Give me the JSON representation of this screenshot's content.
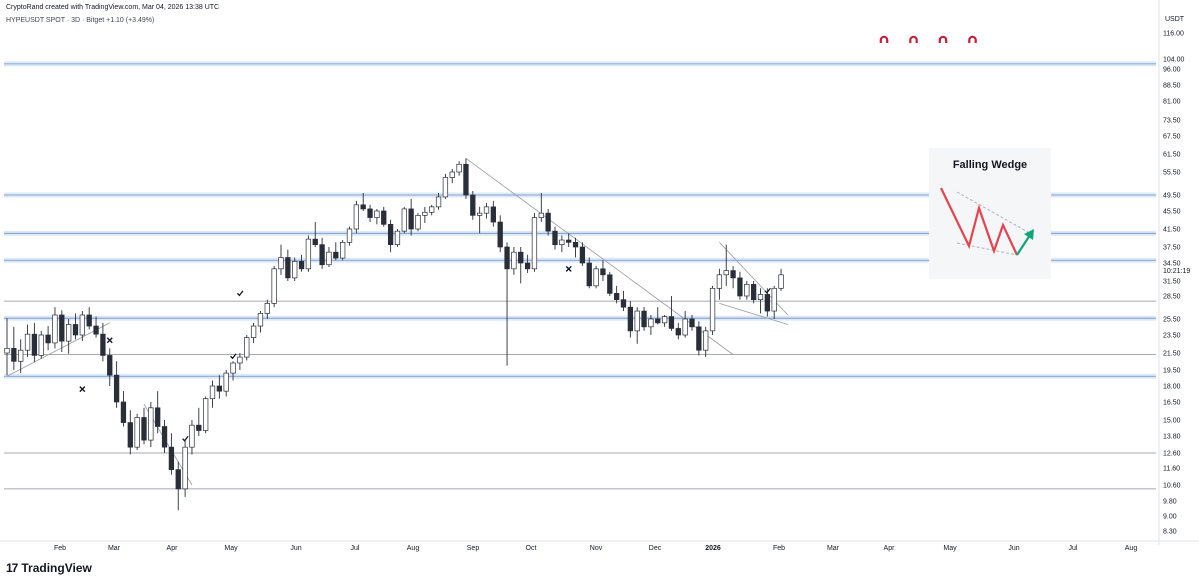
{
  "header": {
    "credit": "CryptoRand created with TradingView.com, Mar 04, 2026 13:38 UTC",
    "symbol_line": "HYPEUSDT SPOT · 3D · Bitget  +1.10 (+3.49%)"
  },
  "branding": {
    "logo_mark": "17",
    "logo_name": "TradingView"
  },
  "annotation_card": {
    "title": "Falling Wedge"
  },
  "colors": {
    "up": "#ffffff",
    "down": "#2a2e39",
    "wick": "#2a2e39",
    "level_blue": "#a9c7ee",
    "level_gray": "#8a8d96",
    "wedge_red": "#e8424f",
    "wedge_green": "#0fa67a",
    "marker_red": "#c71f38"
  },
  "chart_data": {
    "type": "candlestick",
    "currency": "USDT",
    "price_tag": "10:21:19",
    "y_log_scale": true,
    "y_ticks": [
      "116.00",
      "104.00",
      "96.00",
      "88.50",
      "81.00",
      "73.50",
      "67.50",
      "61.50",
      "55.50",
      "49.50",
      "45.50",
      "41.50",
      "37.50",
      "34.50",
      "31.50",
      "28.50",
      "25.50",
      "23.50",
      "21.50",
      "19.50",
      "18.00",
      "16.50",
      "15.00",
      "13.80",
      "12.60",
      "11.60",
      "10.60",
      "9.80",
      "9.00",
      "8.30"
    ],
    "x_ticks": [
      "Feb",
      "Mar",
      "Apr",
      "May",
      "Jun",
      "Jul",
      "Aug",
      "Sep",
      "Oct",
      "Nov",
      "Dec",
      "2026",
      "Feb",
      "Mar",
      "Apr",
      "May",
      "Jun",
      "Jul",
      "Aug"
    ],
    "horizontal_levels": [
      {
        "price": 100.0,
        "style": "blue"
      },
      {
        "price": 49.5,
        "style": "blue"
      },
      {
        "price": 40.5,
        "style": "blue"
      },
      {
        "price": 35.0,
        "style": "blue"
      },
      {
        "price": 27.8,
        "style": "gray"
      },
      {
        "price": 25.6,
        "style": "blue"
      },
      {
        "price": 21.3,
        "style": "gray"
      },
      {
        "price": 18.9,
        "style": "blue"
      },
      {
        "price": 12.6,
        "style": "gray"
      },
      {
        "price": 10.4,
        "style": "gray"
      }
    ],
    "candles": [
      [
        21.5,
        25.6,
        19.0,
        22.0
      ],
      [
        22.0,
        24.5,
        19.5,
        20.5
      ],
      [
        20.5,
        23.0,
        19.2,
        21.8
      ],
      [
        21.8,
        24.8,
        21.0,
        23.6
      ],
      [
        23.6,
        25.0,
        20.4,
        21.2
      ],
      [
        21.2,
        24.0,
        20.8,
        23.5
      ],
      [
        23.5,
        24.6,
        21.8,
        22.6
      ],
      [
        22.6,
        27.0,
        22.0,
        26.0
      ],
      [
        26.0,
        26.6,
        21.6,
        22.8
      ],
      [
        22.8,
        25.5,
        21.4,
        24.8
      ],
      [
        24.8,
        26.2,
        23.0,
        23.5
      ],
      [
        23.5,
        26.5,
        22.8,
        26.0
      ],
      [
        26.0,
        27.0,
        24.2,
        24.6
      ],
      [
        24.6,
        25.8,
        23.2,
        23.6
      ],
      [
        23.6,
        25.0,
        20.5,
        21.2
      ],
      [
        21.2,
        22.0,
        18.0,
        19.0
      ],
      [
        19.0,
        20.5,
        16.0,
        16.5
      ],
      [
        16.5,
        17.5,
        14.5,
        14.8
      ],
      [
        14.8,
        15.8,
        12.5,
        13.0
      ],
      [
        13.0,
        15.5,
        12.8,
        15.2
      ],
      [
        15.2,
        16.0,
        13.2,
        13.5
      ],
      [
        13.5,
        16.5,
        13.0,
        16.0
      ],
      [
        16.0,
        17.5,
        14.0,
        14.5
      ],
      [
        14.5,
        15.0,
        12.6,
        13.0
      ],
      [
        13.0,
        14.0,
        11.2,
        11.5
      ],
      [
        11.5,
        12.0,
        9.3,
        10.4
      ],
      [
        10.4,
        13.5,
        10.0,
        13.0
      ],
      [
        13.0,
        15.0,
        12.5,
        14.6
      ],
      [
        14.6,
        16.0,
        13.8,
        14.2
      ],
      [
        14.2,
        17.0,
        14.0,
        16.8
      ],
      [
        16.8,
        18.5,
        16.0,
        18.0
      ],
      [
        18.0,
        19.0,
        16.8,
        17.5
      ],
      [
        17.5,
        19.5,
        17.0,
        19.2
      ],
      [
        19.2,
        20.5,
        18.5,
        20.3
      ],
      [
        20.3,
        21.5,
        19.5,
        21.0
      ],
      [
        21.0,
        23.5,
        20.6,
        23.2
      ],
      [
        23.2,
        25.0,
        22.6,
        24.6
      ],
      [
        24.6,
        26.5,
        23.8,
        26.2
      ],
      [
        26.2,
        28.0,
        25.5,
        27.5
      ],
      [
        27.5,
        34.0,
        27.0,
        33.5
      ],
      [
        33.5,
        38.0,
        32.5,
        35.5
      ],
      [
        35.5,
        37.0,
        31.5,
        32.0
      ],
      [
        32.0,
        35.5,
        31.5,
        34.8
      ],
      [
        34.8,
        36.0,
        33.0,
        33.5
      ],
      [
        33.5,
        40.0,
        33.0,
        39.2
      ],
      [
        39.2,
        43.0,
        37.5,
        38.0
      ],
      [
        38.0,
        39.5,
        33.5,
        34.2
      ],
      [
        34.2,
        37.5,
        33.8,
        36.5
      ],
      [
        36.5,
        38.5,
        35.0,
        35.4
      ],
      [
        35.4,
        39.0,
        35.0,
        38.5
      ],
      [
        38.5,
        42.0,
        37.8,
        41.5
      ],
      [
        41.5,
        48.0,
        40.5,
        47.0
      ],
      [
        47.0,
        50.0,
        45.5,
        46.0
      ],
      [
        46.0,
        47.0,
        43.0,
        44.0
      ],
      [
        44.0,
        46.0,
        42.5,
        45.5
      ],
      [
        45.5,
        46.5,
        42.0,
        42.5
      ],
      [
        42.5,
        43.5,
        36.5,
        38.0
      ],
      [
        38.0,
        41.5,
        37.5,
        41.0
      ],
      [
        41.0,
        46.5,
        40.5,
        46.0
      ],
      [
        46.0,
        48.5,
        40.0,
        41.5
      ],
      [
        41.5,
        45.0,
        41.0,
        44.5
      ],
      [
        44.5,
        46.5,
        42.8,
        45.2
      ],
      [
        45.2,
        47.0,
        44.5,
        46.5
      ],
      [
        46.5,
        50.0,
        45.8,
        49.0
      ],
      [
        49.0,
        55.0,
        48.5,
        54.0
      ],
      [
        54.0,
        56.5,
        52.5,
        55.5
      ],
      [
        55.5,
        59.0,
        54.5,
        58.0
      ],
      [
        58.0,
        60.0,
        48.5,
        49.5
      ],
      [
        49.5,
        50.5,
        43.5,
        44.5
      ],
      [
        44.5,
        46.5,
        40.5,
        45.0
      ],
      [
        45.0,
        47.5,
        43.8,
        46.5
      ],
      [
        46.5,
        48.0,
        42.0,
        43.0
      ],
      [
        43.0,
        44.5,
        36.5,
        37.5
      ],
      [
        37.5,
        38.5,
        20.0,
        33.5
      ],
      [
        33.5,
        37.5,
        32.5,
        36.5
      ],
      [
        36.5,
        37.5,
        31.0,
        34.5
      ],
      [
        34.5,
        36.0,
        32.8,
        33.5
      ],
      [
        33.5,
        45.0,
        33.0,
        44.0
      ],
      [
        44.0,
        50.0,
        43.0,
        45.0
      ],
      [
        45.0,
        46.0,
        40.0,
        41.0
      ],
      [
        41.0,
        42.0,
        37.0,
        38.0
      ],
      [
        38.0,
        40.0,
        36.5,
        39.0
      ],
      [
        39.0,
        40.5,
        37.5,
        38.5
      ],
      [
        38.5,
        39.5,
        35.5,
        37.5
      ],
      [
        37.5,
        38.5,
        34.0,
        34.5
      ],
      [
        34.5,
        35.5,
        30.0,
        30.5
      ],
      [
        30.5,
        34.0,
        30.0,
        33.5
      ],
      [
        33.5,
        35.0,
        31.5,
        32.5
      ],
      [
        32.5,
        33.0,
        28.5,
        29.0
      ],
      [
        29.0,
        30.5,
        27.5,
        28.0
      ],
      [
        28.0,
        29.5,
        26.5,
        27.0
      ],
      [
        27.0,
        27.8,
        23.2,
        24.0
      ],
      [
        24.0,
        27.0,
        22.5,
        26.5
      ],
      [
        26.5,
        27.0,
        24.0,
        24.5
      ],
      [
        24.5,
        26.0,
        23.5,
        25.5
      ],
      [
        25.5,
        27.0,
        24.8,
        25.0
      ],
      [
        25.0,
        26.0,
        24.5,
        25.8
      ],
      [
        25.8,
        28.5,
        24.0,
        24.3
      ],
      [
        24.3,
        25.0,
        23.0,
        23.5
      ],
      [
        23.5,
        26.5,
        23.2,
        25.5
      ],
      [
        25.5,
        26.0,
        24.0,
        24.5
      ],
      [
        24.5,
        25.2,
        21.2,
        21.8
      ],
      [
        21.8,
        24.5,
        21.0,
        24.0
      ],
      [
        24.0,
        30.5,
        23.5,
        30.0
      ],
      [
        30.0,
        33.5,
        28.0,
        32.5
      ],
      [
        32.5,
        38.0,
        30.5,
        33.2
      ],
      [
        33.2,
        34.0,
        30.0,
        32.0
      ],
      [
        32.0,
        33.0,
        28.0,
        28.5
      ],
      [
        28.5,
        31.5,
        28.0,
        30.8
      ],
      [
        30.8,
        31.5,
        27.5,
        28.0
      ],
      [
        28.0,
        30.0,
        26.2,
        28.8
      ],
      [
        28.8,
        30.0,
        25.8,
        26.5
      ],
      [
        26.5,
        30.5,
        25.5,
        30.0
      ],
      [
        30.0,
        33.5,
        29.5,
        32.5
      ]
    ],
    "trendlines": [
      {
        "from": [
          0,
          18.9
        ],
        "to": [
          15,
          25.0
        ]
      },
      {
        "from": [
          20,
          16.3
        ],
        "to": [
          27,
          10.6
        ]
      },
      {
        "from": [
          67,
          60.0
        ],
        "to": [
          106,
          21.3
        ]
      },
      {
        "from": [
          104,
          38.5
        ],
        "to": [
          114,
          26.0
        ]
      },
      {
        "from": [
          104,
          27.5
        ],
        "to": [
          114,
          24.8
        ]
      }
    ],
    "markers": [
      {
        "type": "x",
        "index": 15,
        "price": 22.9
      },
      {
        "type": "x",
        "index": 11,
        "price": 17.7
      },
      {
        "type": "check",
        "index": 34,
        "price": 29.0
      },
      {
        "type": "check",
        "index": 33,
        "price": 21.1
      },
      {
        "type": "check",
        "index": 26,
        "price": 13.6
      },
      {
        "type": "x",
        "index": 82,
        "price": 33.5
      },
      {
        "type": "check",
        "index": 111,
        "price": 29.5
      }
    ],
    "magnets": 4
  }
}
